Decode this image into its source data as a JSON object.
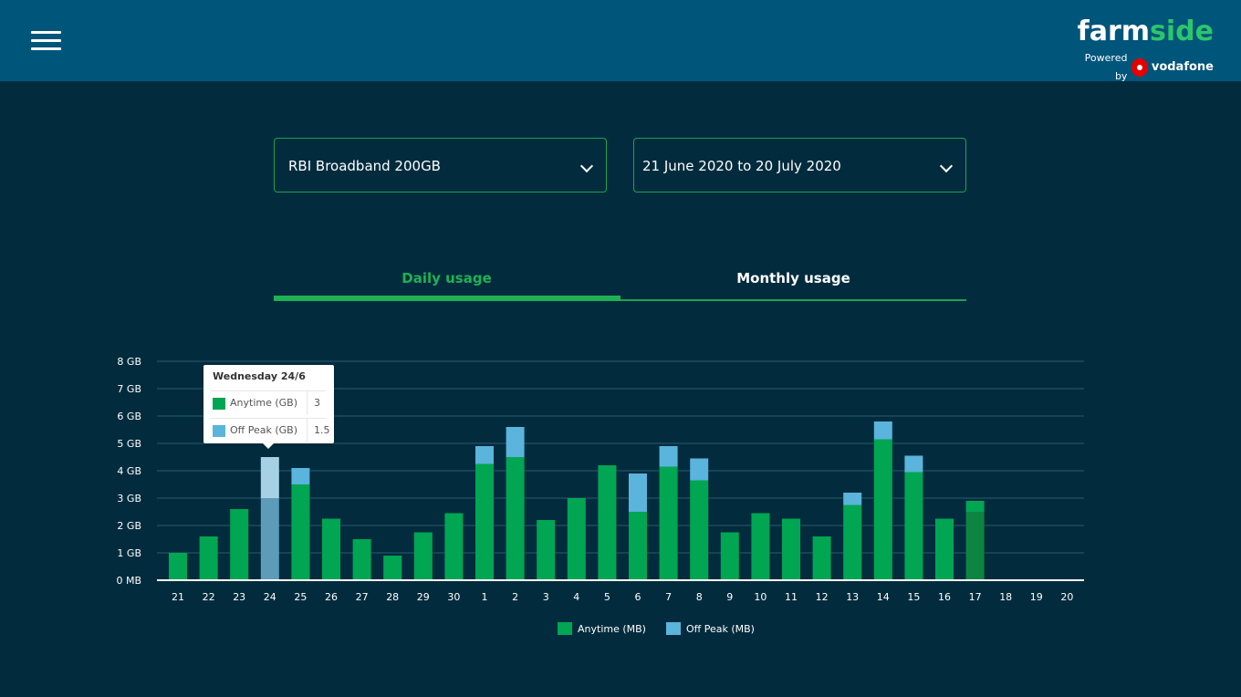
{
  "header": {
    "brand_part1": "farm",
    "brand_part2": "side",
    "powered_by": "Powered by",
    "partner": "vodafone"
  },
  "filters": {
    "plan": "RBI Broadband 200GB",
    "period": "21 June 2020 to 20 July 2020"
  },
  "tabs": {
    "daily": "Daily usage",
    "monthly": "Monthly usage"
  },
  "tooltip": {
    "title": "Wednesday 24/6",
    "rows": [
      {
        "label": "Anytime (GB)",
        "value": "3"
      },
      {
        "label": "Off Peak (GB)",
        "value": "1.5"
      }
    ]
  },
  "colors": {
    "anytime": "#00a651",
    "offpeak": "#5ab4dc",
    "header": "#00557a",
    "background": "#022c3e"
  },
  "chart_data": {
    "type": "bar",
    "stacked": true,
    "categories": [
      "21",
      "22",
      "23",
      "24",
      "25",
      "26",
      "27",
      "28",
      "29",
      "30",
      "1",
      "2",
      "3",
      "4",
      "5",
      "6",
      "7",
      "8",
      "9",
      "10",
      "11",
      "12",
      "13",
      "14",
      "15",
      "16",
      "17",
      "18",
      "19",
      "20"
    ],
    "yticks": [
      "0 MB",
      "1 GB",
      "2 GB",
      "3 GB",
      "4 GB",
      "5 GB",
      "6 GB",
      "7 GB",
      "8 GB"
    ],
    "ylim": [
      0,
      8
    ],
    "series": [
      {
        "name": "Anytime (MB)",
        "values": [
          1.0,
          1.6,
          2.6,
          3.0,
          3.5,
          2.25,
          1.5,
          0.9,
          1.75,
          2.45,
          4.25,
          4.5,
          2.2,
          3.0,
          4.2,
          2.5,
          4.15,
          3.65,
          1.75,
          2.45,
          2.25,
          1.6,
          2.75,
          5.15,
          3.95,
          2.25,
          2.5,
          0,
          0,
          0
        ]
      },
      {
        "name": "Off Peak (MB)",
        "values": [
          0,
          0,
          0,
          1.5,
          0.6,
          0,
          0,
          0,
          0,
          0,
          0.65,
          1.1,
          0,
          0,
          0,
          1.4,
          0.75,
          0.8,
          0,
          0,
          0,
          0,
          0.45,
          0.65,
          0.6,
          0,
          0.4,
          0,
          0,
          0
        ]
      }
    ],
    "highlighted_index": 3,
    "legend_position": "bottom",
    "grid": true
  }
}
